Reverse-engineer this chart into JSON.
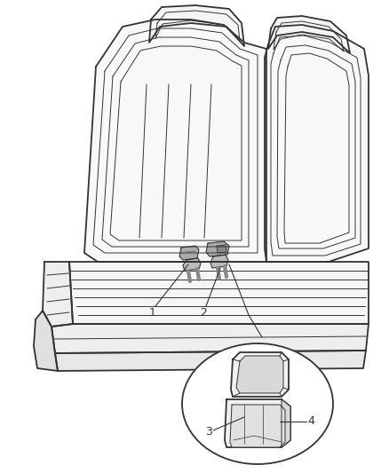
{
  "bg_color": "#ffffff",
  "line_color": "#333333",
  "label_1": "1",
  "label_2": "2",
  "label_3": "3",
  "label_4": "4",
  "font_size_labels": 9,
  "lw_main": 1.3,
  "lw_thin": 0.7,
  "lw_detail": 0.5
}
